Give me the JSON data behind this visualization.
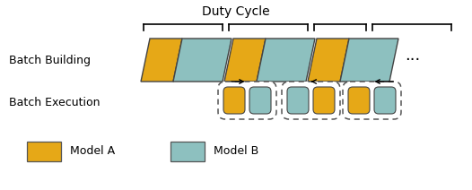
{
  "title": "Duty Cycle",
  "label_batch_building": "Batch Building",
  "label_batch_execution": "Batch Execution",
  "color_orange": "#E6A817",
  "color_teal": "#8DC0BF",
  "color_edge": "#444444",
  "legend_model_a": "Model A",
  "legend_model_b": "Model B",
  "bg_color": "#ffffff",
  "figsize": [
    5.26,
    2.12
  ],
  "dpi": 100
}
